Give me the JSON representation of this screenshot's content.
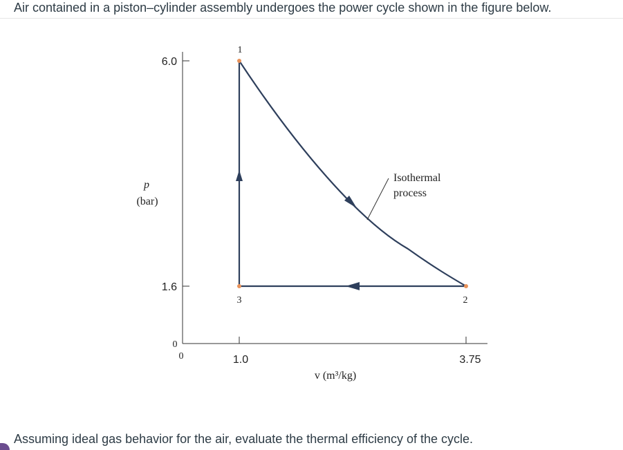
{
  "question": {
    "intro": "Air contained in a piston–cylinder assembly undergoes the power cycle shown in the figure below.",
    "task": "Assuming ideal gas behavior for the air, evaluate the thermal efficiency of the cycle."
  },
  "diagram": {
    "y_axis": {
      "symbol": "p",
      "unit": "(bar)",
      "ticks": [
        "6.0",
        "1.6"
      ],
      "origin": "0"
    },
    "x_axis": {
      "unit_label": "v (m³/kg)",
      "ticks": [
        "1.0",
        "3.75"
      ],
      "origin": "0"
    },
    "states": [
      {
        "label": "1",
        "v": 1.0,
        "p": 6.0
      },
      {
        "label": "2",
        "v": 3.75,
        "p": 1.6
      },
      {
        "label": "3",
        "v": 1.0,
        "p": 1.6
      }
    ],
    "process_annotation": {
      "line1": "Isothermal",
      "line2": "process"
    },
    "colors": {
      "curve": "#2e3f5c",
      "state_point": "#e8925a",
      "axis": "#333333"
    }
  }
}
